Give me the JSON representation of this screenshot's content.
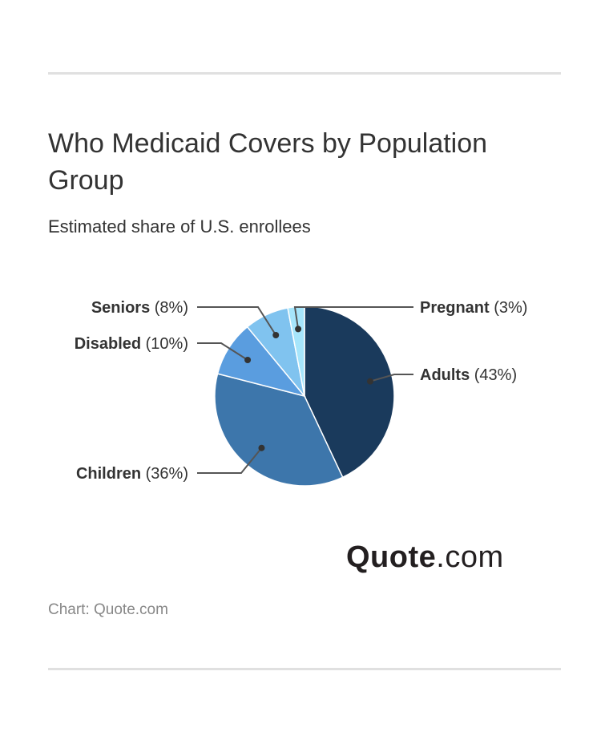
{
  "title": "Who Medicaid Covers by Population Group",
  "subtitle": "Estimated share of U.S. enrollees",
  "source": "Chart: Quote.com",
  "logo": {
    "bold": "Quote",
    "light": ".com"
  },
  "chart_data": {
    "type": "pie",
    "start_angle_deg": 0,
    "direction": "clockwise",
    "slices": [
      {
        "name": "Adults",
        "value": 43,
        "label_value": "(43%)",
        "color": "#1a3a5c"
      },
      {
        "name": "Children",
        "value": 36,
        "label_value": "(36%)",
        "color": "#3d76ab"
      },
      {
        "name": "Disabled",
        "value": 10,
        "label_value": "(10%)",
        "color": "#5a9ddf"
      },
      {
        "name": "Seniors",
        "value": 8,
        "label_value": "(8%)",
        "color": "#80c3ef"
      },
      {
        "name": "Pregnant",
        "value": 3,
        "label_value": "(3%)",
        "color": "#a6e5fb"
      }
    ]
  }
}
